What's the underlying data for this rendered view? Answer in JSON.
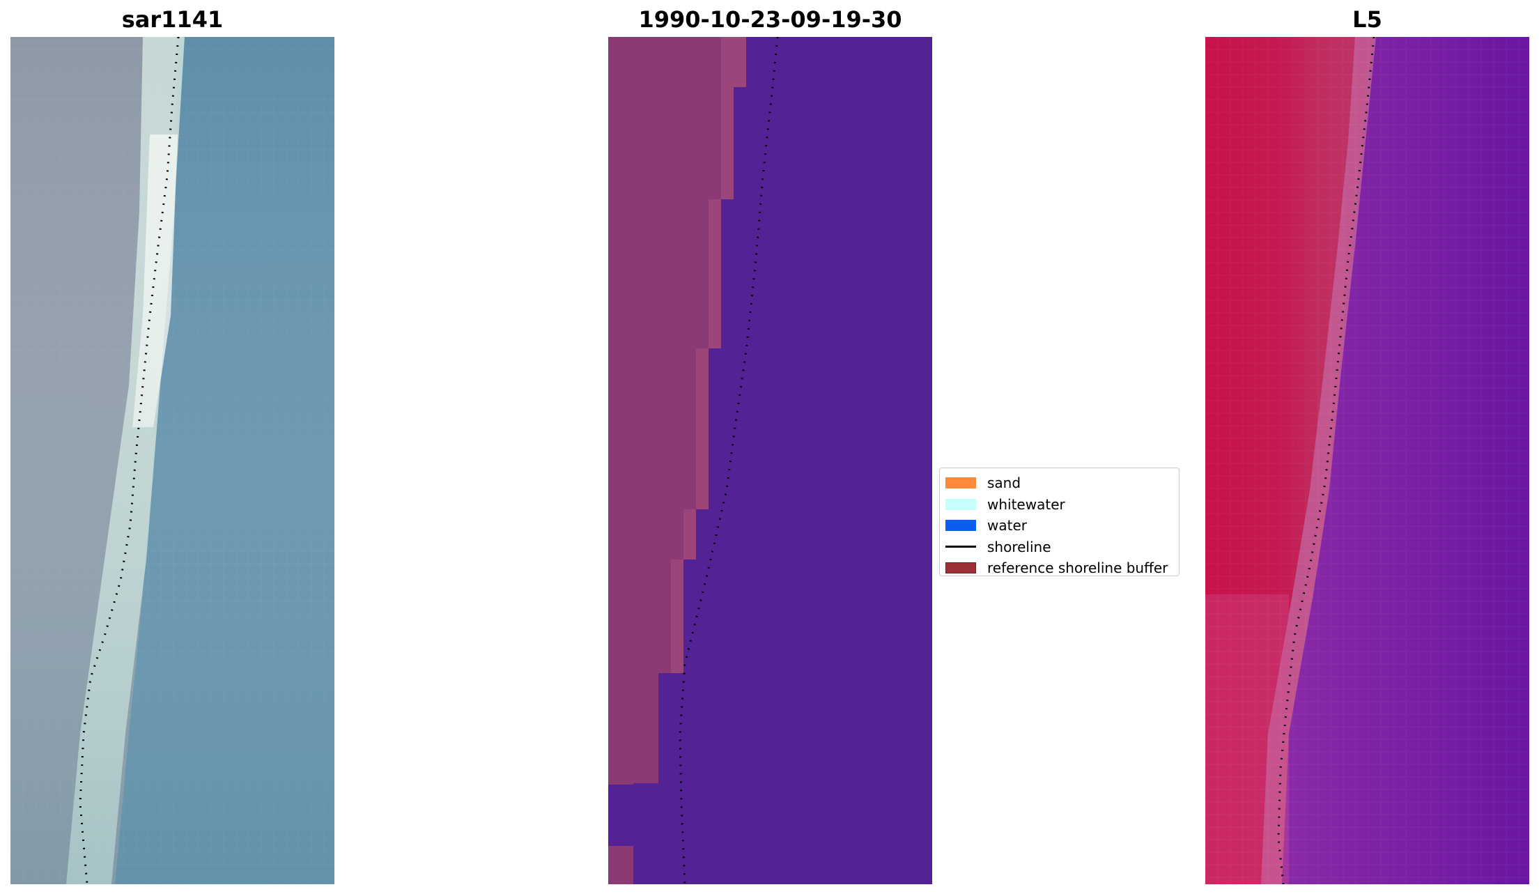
{
  "panels": [
    {
      "title": "sar1141",
      "kind": "rgb-satellite-image",
      "colors": {
        "land": "#8a98a4",
        "sand": "#dcebe6",
        "water": "#5e8fa8"
      }
    },
    {
      "title": "1990-10-23-09-19-30",
      "kind": "classified-image",
      "colors": {
        "buffer": "#8c3a74",
        "buffer-edge": "#b0527e",
        "water": "#532396"
      }
    },
    {
      "title": "L5",
      "kind": "water-index-image",
      "colors": {
        "land": "#c9164b",
        "beach": "#c05a8f",
        "water": "#7a1aa0"
      }
    }
  ],
  "legend": {
    "items": [
      {
        "label": "sand",
        "type": "patch",
        "color": "#fc8a3a",
        "edge": "#fc8a3a"
      },
      {
        "label": "whitewater",
        "type": "patch",
        "color": "#c6fffc",
        "edge": "#c6fffc"
      },
      {
        "label": "water",
        "type": "patch",
        "color": "#0b5cf1",
        "edge": "#0b5cf1"
      },
      {
        "label": "shoreline",
        "type": "line",
        "color": "#000000"
      },
      {
        "label": "reference shoreline buffer",
        "type": "patch",
        "color": "#9c3038",
        "edge": "#6f1f24"
      }
    ]
  },
  "shoreline": {
    "style": "dotted",
    "color": "#000000"
  }
}
